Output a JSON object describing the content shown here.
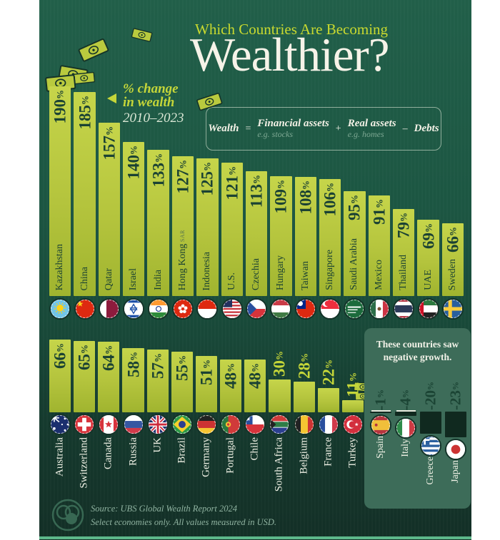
{
  "header": {
    "kicker": "Which Countries Are Becoming",
    "title": "Wealthier?"
  },
  "subtitle": {
    "line1": "% change",
    "line2": "in wealth",
    "years": "2010–2023"
  },
  "formula": {
    "wealth": "Wealth",
    "eq": "=",
    "term1": "Financial assets",
    "sub1": "e.g. stocks",
    "plus": "+",
    "term2": "Real assets",
    "sub2": "e.g. homes",
    "minus": "–",
    "term3": "Debts"
  },
  "negative_box": {
    "heading_line1": "These countries saw",
    "heading_line2": "negative growth."
  },
  "footer": {
    "source_line1": "Source: UBS Global Wealth Report 2024",
    "source_line2": "Select economies only. All values measured in USD."
  },
  "colors": {
    "background_top": "#215f49",
    "background_bottom": "#132f26",
    "bar_top": "#c6d54a",
    "bar_bottom": "#a0b42f",
    "accent_text": "#c5d639",
    "dark_text": "#1b4233",
    "panel": "#3d6c59",
    "negative_bar": "#10291f",
    "title_white": "#f6f3e8",
    "bottom_strip": "#5db88a"
  },
  "chart_data": {
    "type": "bar",
    "title": "Which Countries Are Becoming Wealthier?",
    "ylabel": "% change in wealth 2010–2023",
    "legend_position": "none",
    "grid": false,
    "rows": [
      {
        "name": "top-row",
        "countries": [
          {
            "name": "Kazakhstan",
            "value": 190,
            "flag": "kz"
          },
          {
            "name": "China",
            "value": 185,
            "flag": "cn"
          },
          {
            "name": "Qatar",
            "value": 157,
            "flag": "qa"
          },
          {
            "name": "Israel",
            "value": 140,
            "flag": "il"
          },
          {
            "name": "India",
            "value": 133,
            "flag": "in"
          },
          {
            "name": "Hong Kong",
            "suffix": "SAR",
            "value": 127,
            "flag": "hk"
          },
          {
            "name": "Indonesia",
            "value": 125,
            "flag": "id"
          },
          {
            "name": "U.S.",
            "value": 121,
            "flag": "us"
          },
          {
            "name": "Czechia",
            "value": 113,
            "flag": "cz"
          },
          {
            "name": "Hungary",
            "value": 109,
            "flag": "hu"
          },
          {
            "name": "Taiwan",
            "value": 108,
            "flag": "tw"
          },
          {
            "name": "Singapore",
            "value": 106,
            "flag": "sg"
          },
          {
            "name": "Saudi Arabia",
            "value": 95,
            "flag": "sa"
          },
          {
            "name": "Mexico",
            "value": 91,
            "flag": "mx"
          },
          {
            "name": "Thailand",
            "value": 79,
            "flag": "th"
          },
          {
            "name": "UAE",
            "value": 69,
            "flag": "ae"
          },
          {
            "name": "Sweden",
            "value": 66,
            "flag": "se"
          }
        ]
      },
      {
        "name": "bottom-row",
        "countries": [
          {
            "name": "Australia",
            "value": 66,
            "flag": "au"
          },
          {
            "name": "Switzerland",
            "value": 65,
            "flag": "ch"
          },
          {
            "name": "Canada",
            "value": 64,
            "flag": "ca"
          },
          {
            "name": "Russia",
            "value": 58,
            "flag": "ru"
          },
          {
            "name": "UK",
            "value": 57,
            "flag": "gb"
          },
          {
            "name": "Brazil",
            "value": 55,
            "flag": "br"
          },
          {
            "name": "Germany",
            "value": 51,
            "flag": "de"
          },
          {
            "name": "Portugal",
            "value": 48,
            "flag": "pt"
          },
          {
            "name": "Chile",
            "value": 48,
            "flag": "cl"
          },
          {
            "name": "South Africa",
            "value": 30,
            "flag": "za"
          },
          {
            "name": "Belgium",
            "value": 28,
            "flag": "be"
          },
          {
            "name": "France",
            "value": 22,
            "flag": "fr"
          },
          {
            "name": "Turkey",
            "value": 11,
            "flag": "tr"
          }
        ]
      },
      {
        "name": "negative-row",
        "countries": [
          {
            "name": "Spain",
            "value": -1,
            "flag": "es"
          },
          {
            "name": "Italy",
            "value": -4,
            "flag": "it"
          },
          {
            "name": "Greece",
            "value": -20,
            "flag": "gr"
          },
          {
            "name": "Japan",
            "value": -23,
            "flag": "jp"
          }
        ]
      }
    ]
  }
}
